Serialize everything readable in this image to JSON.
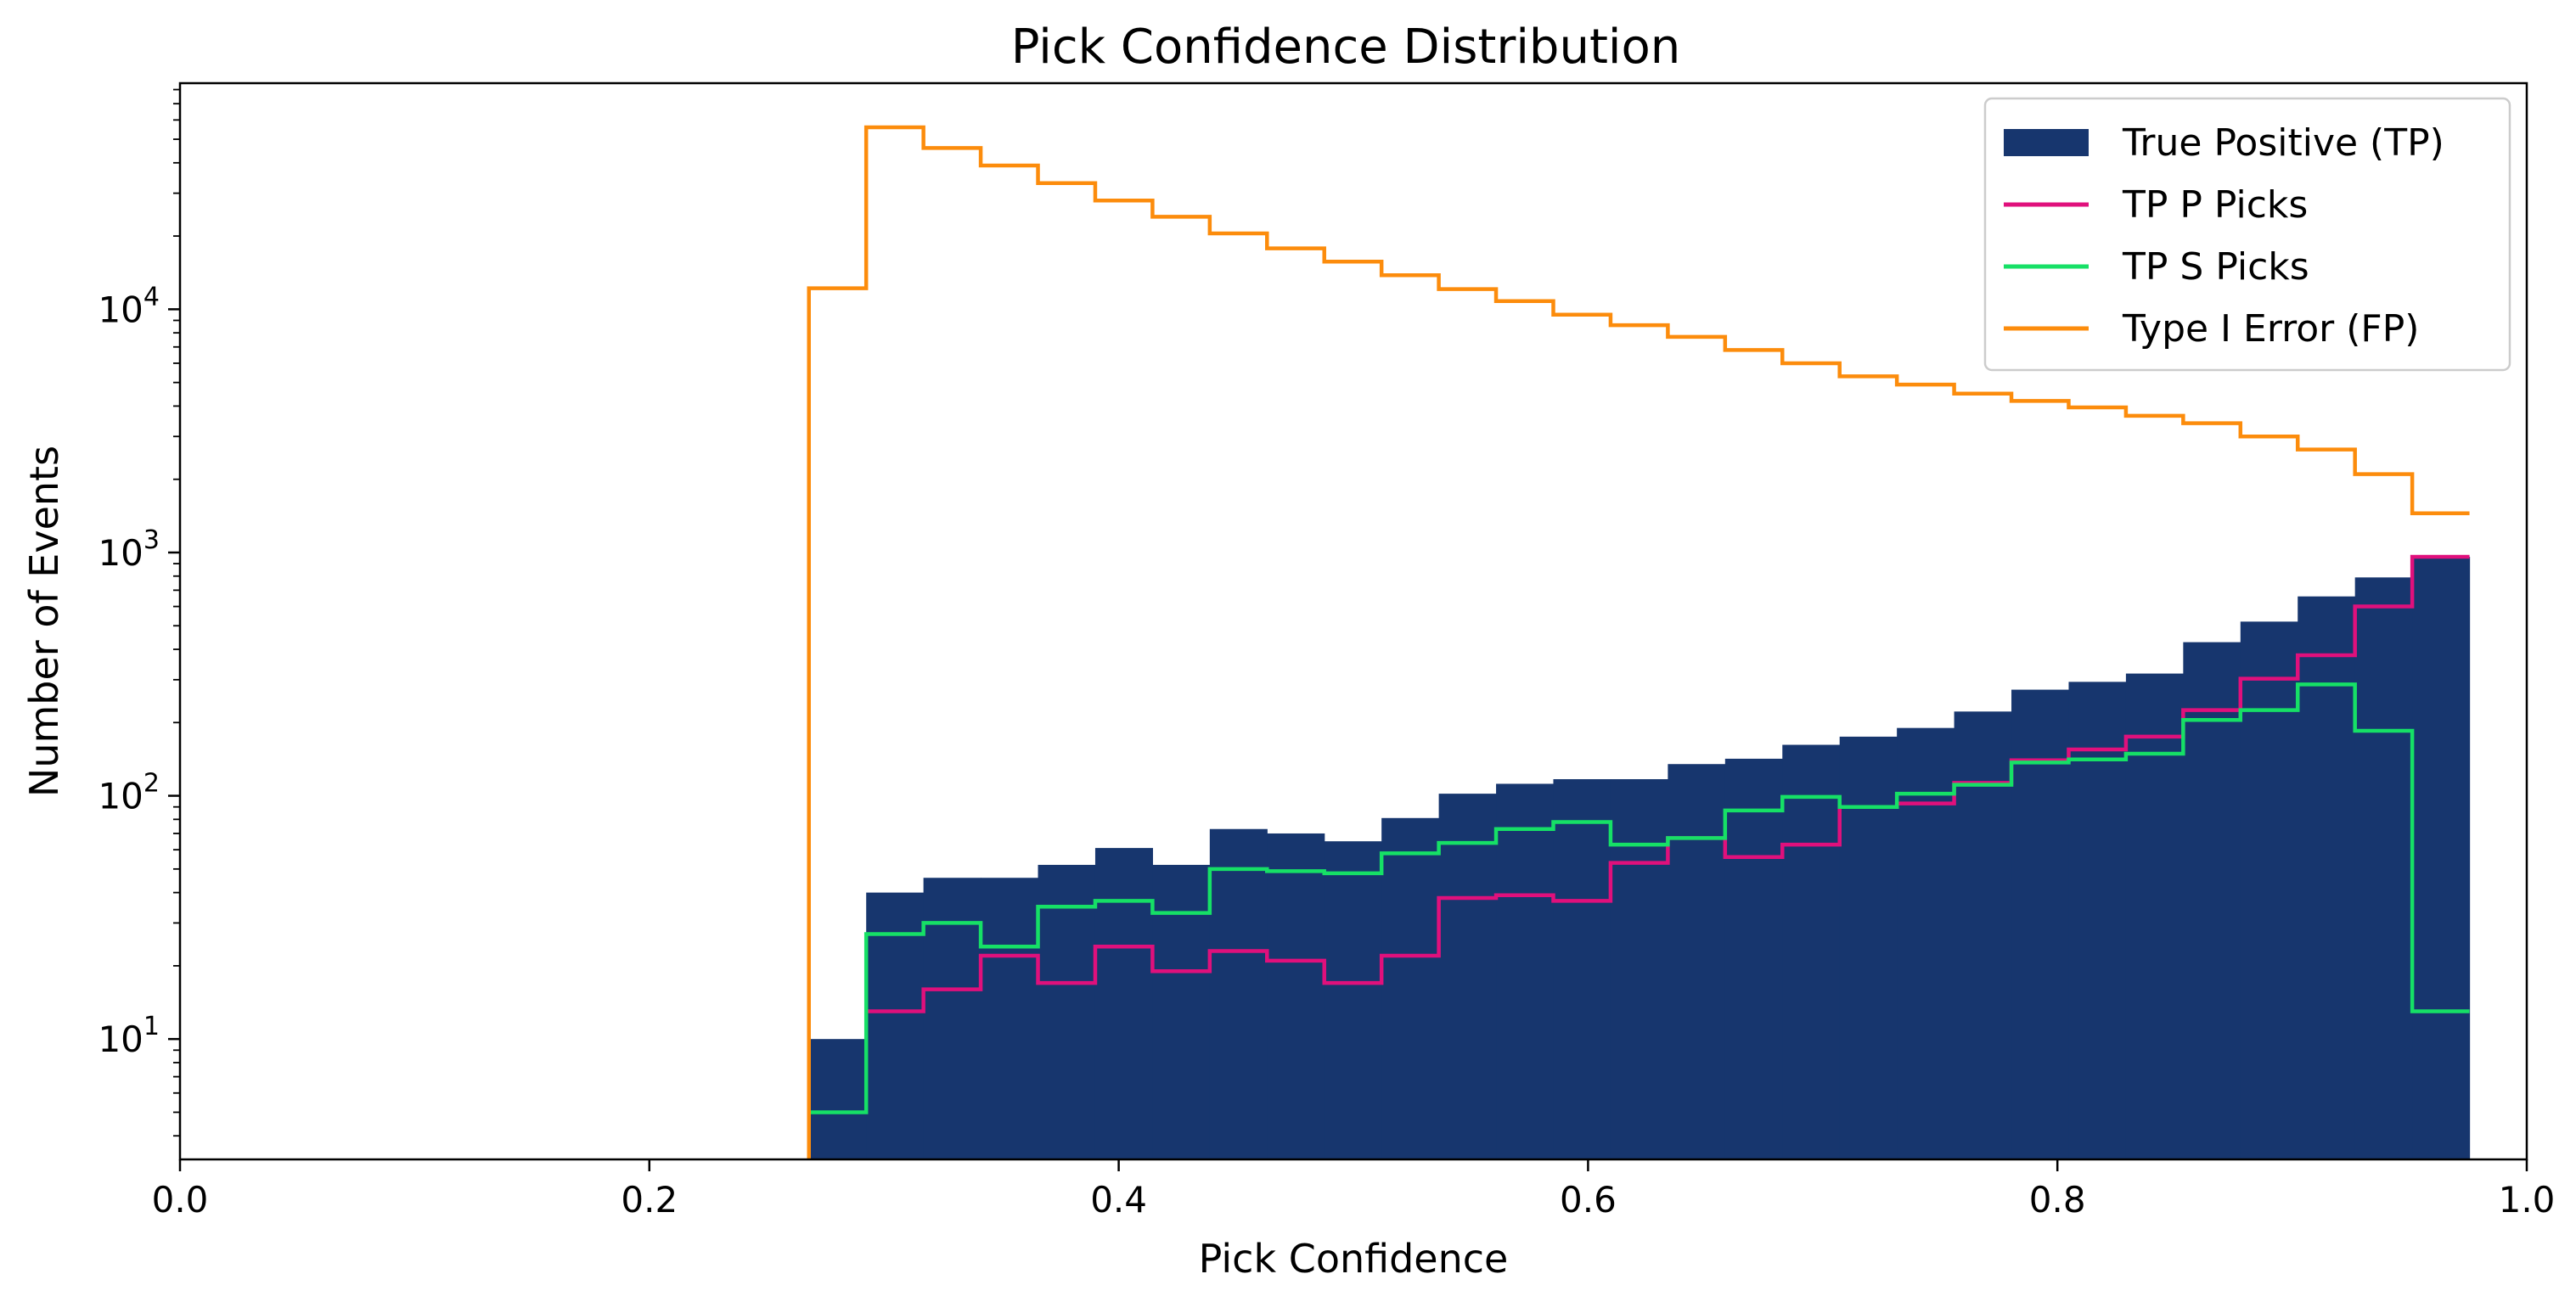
{
  "chart_data": {
    "type": "histogram",
    "title": "Pick Confidence Distribution",
    "xlabel": "Pick Confidence",
    "ylabel": "Number of Events",
    "xlim": [
      0.0,
      1.0
    ],
    "ylim": [
      3.2,
      85000
    ],
    "yscale": "log",
    "x_ticks": [
      0.0,
      0.2,
      0.4,
      0.6,
      0.8,
      1.0
    ],
    "x_tick_labels": [
      "0.0",
      "0.2",
      "0.4",
      "0.6",
      "0.8",
      "1.0"
    ],
    "y_ticks": [
      10,
      100,
      1000,
      10000
    ],
    "y_tick_labels": [
      {
        "base": "10",
        "exp": "1"
      },
      {
        "base": "10",
        "exp": "2"
      },
      {
        "base": "10",
        "exp": "3"
      },
      {
        "base": "10",
        "exp": "4"
      }
    ],
    "grid": false,
    "legend_position": "top-right",
    "bin_edges": [
      0.268,
      0.2924,
      0.3168,
      0.3412,
      0.3656,
      0.39,
      0.4144,
      0.4388,
      0.4632,
      0.4876,
      0.512,
      0.5364,
      0.5608,
      0.5852,
      0.6096,
      0.634,
      0.6584,
      0.6828,
      0.7072,
      0.7316,
      0.756,
      0.7804,
      0.8048,
      0.8292,
      0.8536,
      0.878,
      0.9024,
      0.9268,
      0.9512,
      0.9756
    ],
    "series": [
      {
        "name": "True Positive (TP)",
        "style": "filled",
        "color": "#17366e",
        "values": [
          10,
          40,
          46,
          46,
          52,
          61,
          52,
          73,
          70,
          65,
          81,
          102,
          112,
          117,
          117,
          135,
          142,
          162,
          175,
          190,
          222,
          273,
          294,
          318,
          428,
          520,
          660,
          790,
          960
        ]
      },
      {
        "name": "TP P Picks",
        "style": "step",
        "color": "#e0107c",
        "values": [
          null,
          13,
          16,
          22,
          17,
          24,
          19,
          23,
          21,
          17,
          22,
          38,
          39,
          37,
          53,
          67,
          56,
          63,
          90,
          93,
          113,
          140,
          155,
          175,
          225,
          303,
          378,
          600,
          960
        ]
      },
      {
        "name": "TP S Picks",
        "style": "step",
        "color": "#16e066",
        "values": [
          5,
          27,
          30,
          24,
          35,
          37,
          33,
          50,
          49,
          48,
          58,
          64,
          73,
          78,
          63,
          67,
          87,
          99,
          90,
          102,
          111,
          137,
          141,
          149,
          205,
          225,
          287,
          185,
          13
        ]
      },
      {
        "name": "Type I Error (FP)",
        "style": "step",
        "color": "#fc8c0c",
        "values": [
          12200,
          56000,
          46000,
          39000,
          33000,
          28000,
          24000,
          20500,
          17800,
          15700,
          13800,
          12100,
          10800,
          9500,
          8600,
          7700,
          6800,
          6000,
          5300,
          4900,
          4500,
          4200,
          3950,
          3650,
          3400,
          3000,
          2650,
          2100,
          1450
        ]
      }
    ]
  }
}
